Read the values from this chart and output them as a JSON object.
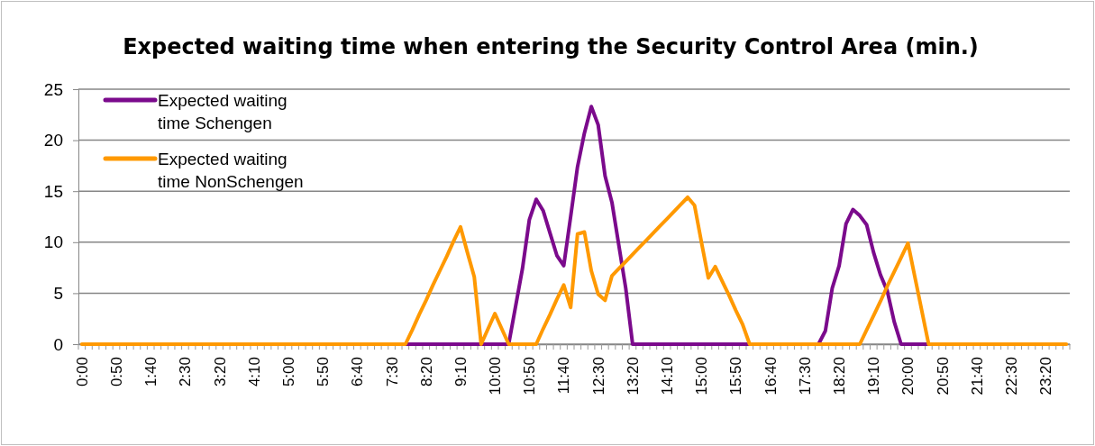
{
  "chart_data": {
    "type": "line",
    "title": "Expected waiting time when entering the Security Control Area (min.)",
    "categories": [
      "0:00",
      null,
      null,
      null,
      null,
      "0:50",
      null,
      null,
      null,
      null,
      "1:40",
      null,
      null,
      null,
      null,
      "2:30",
      null,
      null,
      null,
      null,
      "3:20",
      null,
      null,
      null,
      null,
      "4:10",
      null,
      null,
      null,
      null,
      "5:00",
      null,
      null,
      null,
      null,
      "5:50",
      null,
      null,
      null,
      null,
      "6:40",
      null,
      null,
      null,
      null,
      "7:30",
      null,
      null,
      null,
      null,
      "8:20",
      null,
      null,
      null,
      null,
      "9:10",
      null,
      null,
      null,
      null,
      "10:00",
      null,
      null,
      null,
      null,
      "10:50",
      null,
      null,
      null,
      null,
      "11:40",
      null,
      null,
      null,
      null,
      "12:30",
      null,
      null,
      null,
      null,
      "13:20",
      null,
      null,
      null,
      null,
      "14:10",
      null,
      null,
      null,
      null,
      "15:00",
      null,
      null,
      null,
      null,
      "15:50",
      null,
      null,
      null,
      null,
      "16:40",
      null,
      null,
      null,
      null,
      "17:30",
      null,
      null,
      null,
      null,
      "18:20",
      null,
      null,
      null,
      null,
      "19:10",
      null,
      null,
      null,
      null,
      "20:00",
      null,
      null,
      null,
      null,
      "20:50",
      null,
      null,
      null,
      null,
      "21:40",
      null,
      null,
      null,
      null,
      "22:30",
      null,
      null,
      null,
      null,
      "23:20",
      null,
      null,
      null
    ],
    "series": [
      {
        "name": "Expected waiting time Schengen",
        "color": "#7b0a8c",
        "values": [
          null,
          null,
          null,
          null,
          null,
          null,
          null,
          null,
          null,
          null,
          null,
          null,
          null,
          null,
          null,
          null,
          null,
          null,
          null,
          null,
          null,
          null,
          null,
          null,
          null,
          null,
          null,
          null,
          null,
          null,
          null,
          null,
          null,
          null,
          null,
          null,
          null,
          null,
          null,
          null,
          null,
          null,
          null,
          null,
          null,
          null,
          null,
          0,
          0,
          0,
          0,
          0,
          0,
          0,
          0,
          0,
          0,
          0,
          0,
          0,
          0,
          0,
          0,
          3.7,
          7.4,
          12.2,
          14.2,
          13.1,
          10.9,
          8.7,
          7.7,
          12.5,
          17.4,
          20.7,
          23.3,
          21.5,
          16.5,
          13.9,
          9.7,
          5.5,
          0,
          0,
          0,
          0,
          0,
          0,
          0,
          0,
          0,
          0,
          0,
          0,
          0,
          0,
          0,
          0,
          0,
          0,
          null,
          null,
          null,
          null,
          null,
          null,
          null,
          null,
          null,
          0,
          1.3,
          5.5,
          7.7,
          11.8,
          13.2,
          12.6,
          11.7,
          9.0,
          6.8,
          5.2,
          2.2,
          0,
          0,
          0,
          0,
          0,
          null,
          null,
          null,
          null,
          null,
          null,
          null,
          null,
          null,
          null,
          null,
          null,
          null,
          null,
          null,
          null,
          null,
          null,
          null,
          null
        ]
      },
      {
        "name": "Expected waiting time NonSchengen",
        "color": "#ff9900",
        "values": [
          0,
          0,
          0,
          0,
          0,
          0,
          0,
          0,
          0,
          0,
          0,
          0,
          0,
          0,
          0,
          0,
          0,
          0,
          0,
          0,
          0,
          0,
          0,
          0,
          0,
          0,
          0,
          0,
          0,
          0,
          0,
          0,
          0,
          0,
          0,
          0,
          0,
          0,
          0,
          0,
          0,
          0,
          0,
          0,
          0,
          0,
          0,
          0,
          1.4,
          2.9,
          4.3,
          5.8,
          7.2,
          8.6,
          10.1,
          11.5,
          9.0,
          6.6,
          0,
          1.5,
          3.0,
          1.5,
          0,
          0,
          0,
          0,
          0,
          1.5,
          2.9,
          4.4,
          5.8,
          3.6,
          10.8,
          11.0,
          7.2,
          4.9,
          4.3,
          6.7,
          7.4,
          8.1,
          8.8,
          9.5,
          10.2,
          10.9,
          11.6,
          12.3,
          13.0,
          13.7,
          14.4,
          13.6,
          10.0,
          6.5,
          7.6,
          6.2,
          4.8,
          3.3,
          1.9,
          0,
          0,
          0,
          0,
          0,
          0,
          0,
          0,
          0,
          0,
          0,
          0,
          0,
          0,
          0,
          0,
          0,
          1.4,
          2.8,
          4.2,
          5.7,
          7.1,
          8.5,
          9.9,
          6.6,
          3.3,
          0,
          0,
          0,
          0,
          0,
          0,
          0,
          0,
          0,
          0,
          0,
          0,
          0,
          0,
          0,
          0,
          0,
          0,
          0,
          0,
          0
        ]
      }
    ],
    "ylim": [
      0,
      25
    ],
    "yticks": [
      0,
      5,
      10,
      15,
      20,
      25
    ],
    "grid": "y",
    "legend": "top left",
    "marker": "none",
    "line_style": "solid"
  }
}
